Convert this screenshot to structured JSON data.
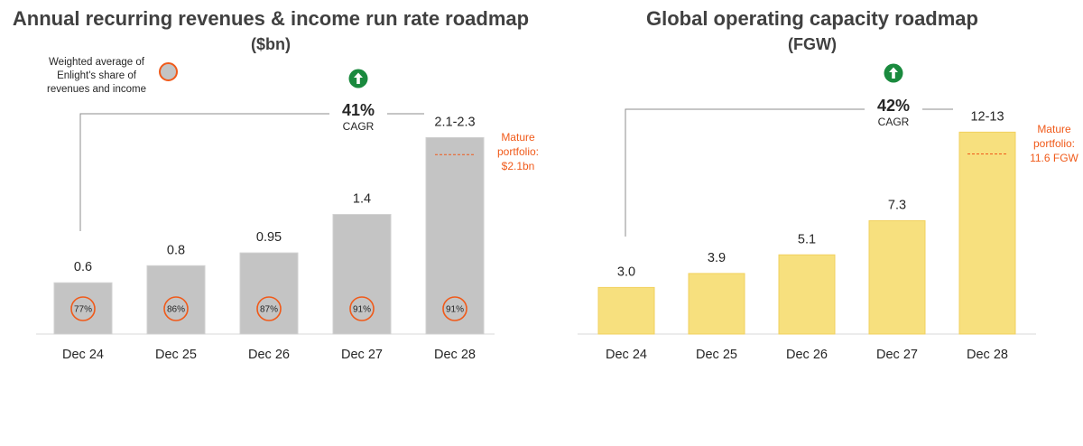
{
  "chart_data": [
    {
      "type": "bar",
      "title": "Annual recurring revenues & income run rate roadmap",
      "subtitle": "($bn)",
      "categories": [
        "Dec 24",
        "Dec 25",
        "Dec 26",
        "Dec 27",
        "Dec 28"
      ],
      "values": [
        0.6,
        0.8,
        0.95,
        1.4,
        2.3
      ],
      "value_labels": [
        "0.6",
        "0.8",
        "0.95",
        "1.4",
        "2.1-2.3"
      ],
      "weighted_share_labels": [
        "77%",
        "86%",
        "87%",
        "91%",
        "91%"
      ],
      "legend": {
        "text": "Weighted average of Enlight's share of revenues and income"
      },
      "cagr": {
        "value": "41%",
        "label": "CAGR"
      },
      "mature_portfolio": {
        "value": 2.1,
        "text": [
          "Mature",
          "portfolio:",
          "$2.1bn"
        ]
      },
      "ylim": [
        0,
        2.6
      ],
      "bar_color": "#c4c4c4",
      "marker_color": "#f05a1a",
      "arrow_color": "#1a8a3e",
      "xlabel": "",
      "ylabel": ""
    },
    {
      "type": "bar",
      "title": "Global operating capacity roadmap",
      "subtitle": "(FGW)",
      "categories": [
        "Dec 24",
        "Dec 25",
        "Dec 26",
        "Dec 27",
        "Dec 28"
      ],
      "values": [
        3.0,
        3.9,
        5.1,
        7.3,
        13
      ],
      "value_labels": [
        "3.0",
        "3.9",
        "5.1",
        "7.3",
        "12-13"
      ],
      "cagr": {
        "value": "42%",
        "label": "CAGR"
      },
      "mature_portfolio": {
        "value": 11.6,
        "text": [
          "Mature",
          "portfolio:",
          "11.6 FGW"
        ]
      },
      "ylim": [
        0,
        14.3
      ],
      "bar_color": "#f7e07e",
      "marker_color": "#f05a1a",
      "arrow_color": "#1a8a3e",
      "xlabel": "",
      "ylabel": ""
    }
  ]
}
